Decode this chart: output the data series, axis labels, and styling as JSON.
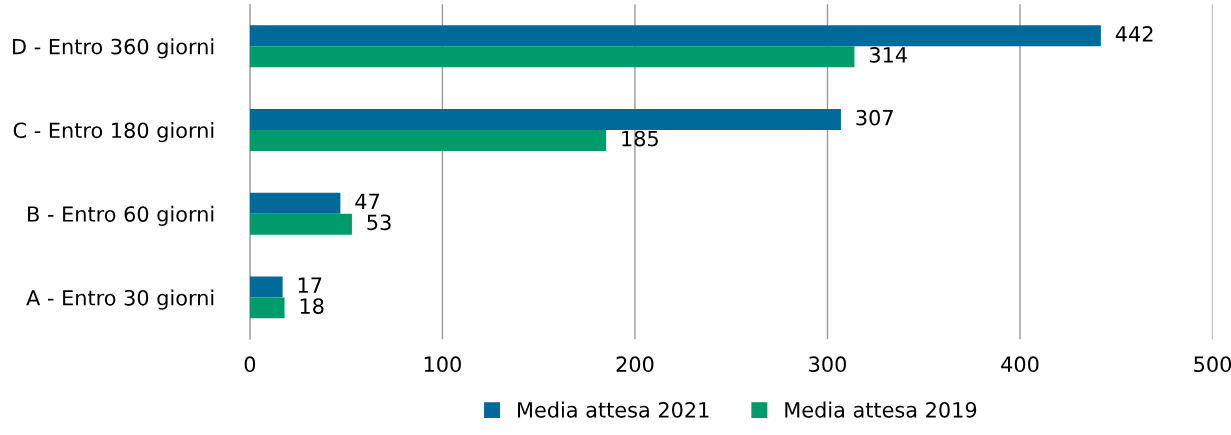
{
  "chart_data": {
    "type": "bar",
    "orientation": "horizontal",
    "categories": [
      "D - Entro 360 giorni",
      "C - Entro 180 giorni",
      "B - Entro 60 giorni",
      "A - Entro 30 giorni"
    ],
    "series": [
      {
        "name": "Media attesa 2021",
        "color": "#006a9a",
        "values": [
          442,
          307,
          47,
          17
        ]
      },
      {
        "name": "Media attesa 2019",
        "color": "#009b6a",
        "values": [
          314,
          185,
          53,
          18
        ]
      }
    ],
    "xlim": [
      0,
      500
    ],
    "xticks": [
      0,
      100,
      200,
      300,
      400,
      500
    ],
    "grid": "x",
    "legend": "bottom",
    "data_labels": true
  }
}
